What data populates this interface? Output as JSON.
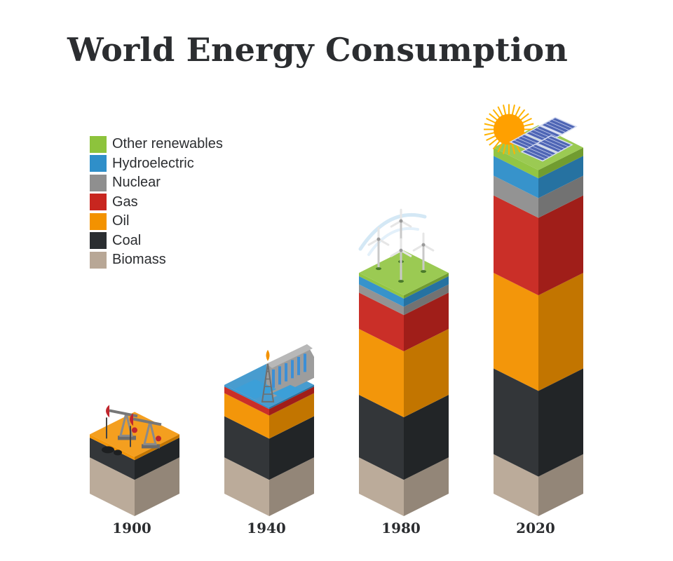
{
  "title": "World Energy Consumption",
  "colors": {
    "Other renewables": "#8dc33c",
    "Hydroelectric": "#2f8fc9",
    "Nuclear": "#8f8f8f",
    "Gas": "#c8261f",
    "Oil": "#f39200",
    "Coal": "#2b2e31",
    "Biomass": "#b8a796"
  },
  "legend": [
    "Other renewables",
    "Hydroelectric",
    "Nuclear",
    "Gas",
    "Oil",
    "Coal",
    "Biomass"
  ],
  "chart_data": {
    "type": "bar",
    "stacked": true,
    "title": "World Energy Consumption",
    "categories": [
      "1900",
      "1940",
      "1980",
      "2020"
    ],
    "series": [
      {
        "name": "Biomass",
        "values": [
          22,
          22,
          22,
          24
        ]
      },
      {
        "name": "Coal",
        "values": [
          12,
          25,
          38,
          52
        ]
      },
      {
        "name": "Oil",
        "values": [
          2,
          14,
          40,
          58
        ]
      },
      {
        "name": "Gas",
        "values": [
          0,
          4,
          22,
          47
        ]
      },
      {
        "name": "Nuclear",
        "values": [
          0,
          0,
          5,
          12
        ]
      },
      {
        "name": "Hydroelectric",
        "values": [
          0,
          1,
          5,
          12
        ]
      },
      {
        "name": "Other renewables",
        "values": [
          0,
          0,
          2,
          5
        ]
      }
    ],
    "grid": false,
    "legend_position": "top-left",
    "illustrations": [
      "oil pumpjacks",
      "hydroelectric dam with oil derrick",
      "wind turbines",
      "sun and solar panels"
    ]
  }
}
